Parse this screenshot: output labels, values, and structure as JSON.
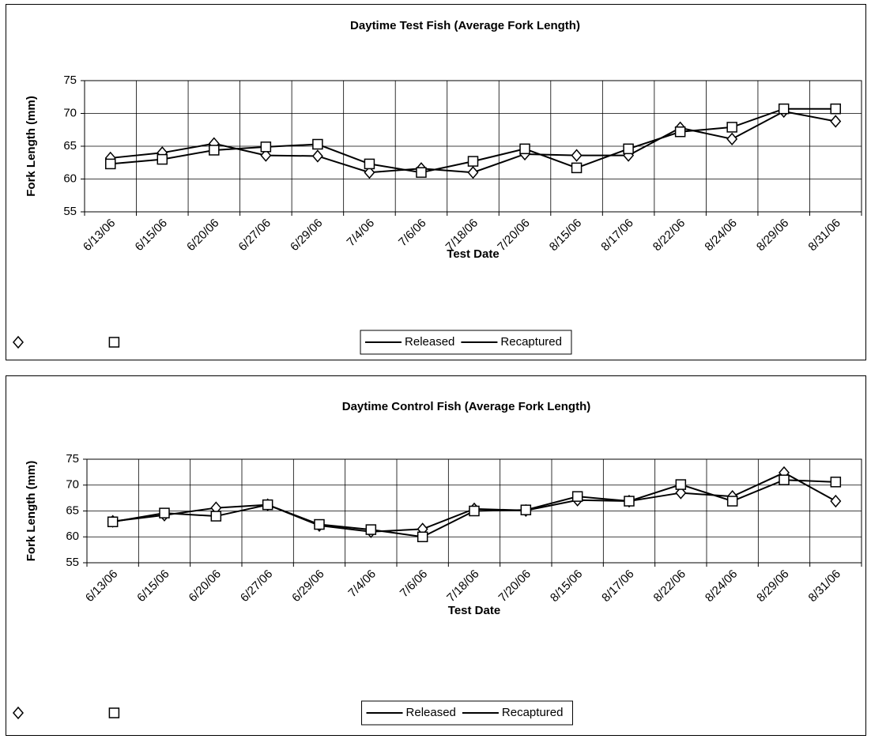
{
  "chart_data": [
    {
      "type": "line",
      "title": "Daytime Test Fish (Average Fork Length)",
      "x_label": "Test Date",
      "y_label": "Fork Length (mm)",
      "categories": [
        "6/13/06",
        "6/15/06",
        "6/20/06",
        "6/27/06",
        "6/29/06",
        "7/4/06",
        "7/6/06",
        "7/18/06",
        "7/20/06",
        "8/15/06",
        "8/17/06",
        "8/22/06",
        "8/24/06",
        "8/29/06",
        "8/31/06"
      ],
      "series": [
        {
          "name": "Released",
          "color": "#000000",
          "marker": "diamond",
          "values": [
            63.2,
            64.0,
            65.4,
            63.6,
            63.5,
            61.0,
            61.6,
            61.0,
            63.8,
            63.6,
            63.6,
            67.8,
            66.1,
            70.3,
            68.8
          ]
        },
        {
          "name": "Recaptured",
          "color": "#000000",
          "marker": "square",
          "values": [
            62.3,
            63.0,
            64.4,
            64.9,
            65.3,
            62.3,
            61.0,
            62.7,
            64.6,
            61.7,
            64.6,
            67.2,
            67.9,
            70.7,
            70.7
          ]
        }
      ],
      "ylim": [
        55,
        75
      ],
      "yticks": [
        55,
        60,
        65,
        70,
        75
      ],
      "grid": true,
      "legend": "bottom"
    },
    {
      "type": "line",
      "title": "Daytime Control Fish (Average Fork Length)",
      "x_label": "Test Date",
      "y_label": "Fork Length (mm)",
      "categories": [
        "6/13/06",
        "6/15/06",
        "6/20/06",
        "6/27/06",
        "6/29/06",
        "7/4/06",
        "7/6/06",
        "7/18/06",
        "7/20/06",
        "8/15/06",
        "8/17/06",
        "8/22/06",
        "8/24/06",
        "8/29/06",
        "8/31/06"
      ],
      "series": [
        {
          "name": "Released",
          "color": "#000000",
          "marker": "diamond",
          "values": [
            63.0,
            64.2,
            65.6,
            66.2,
            62.2,
            61.0,
            61.5,
            65.4,
            65.1,
            67.1,
            66.9,
            68.5,
            67.8,
            72.4,
            66.9
          ]
        },
        {
          "name": "Recaptured",
          "color": "#000000",
          "marker": "square",
          "values": [
            62.9,
            64.6,
            64.0,
            66.2,
            62.4,
            61.4,
            60.0,
            65.0,
            65.2,
            67.8,
            66.9,
            70.1,
            66.9,
            71.0,
            70.6
          ]
        }
      ],
      "ylim": [
        55,
        75
      ],
      "yticks": [
        55,
        60,
        65,
        70,
        75
      ],
      "grid": true,
      "legend": "bottom"
    }
  ]
}
